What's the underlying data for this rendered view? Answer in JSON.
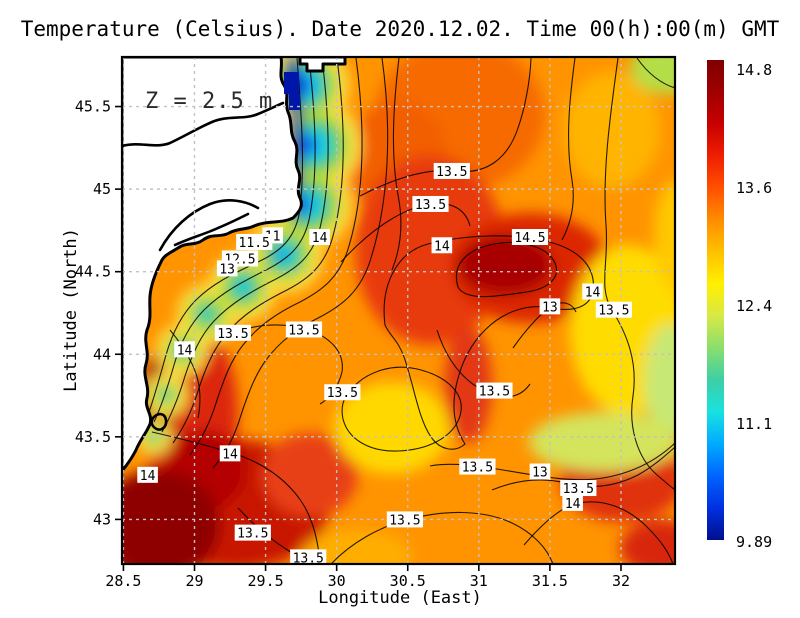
{
  "title": "Temperature (Celsius). Date 2020.12.02. Time 00(h):00(m) GMT",
  "annotation": "Z = 2.5 m",
  "axes": {
    "xlabel": "Longitude (East)",
    "ylabel": "Latitude (North)"
  },
  "chart_data": {
    "type": "heatmap",
    "subtype": "filled-contour-map-with-labeled-contours",
    "title": "Temperature (Celsius). Date 2020.12.02. Time 00(h):00(m) GMT",
    "xlabel": "Longitude (East)",
    "ylabel": "Latitude (North)",
    "depth_annotation": "Z = 2.5 m",
    "xlim": [
      28.49,
      32.38
    ],
    "ylim": [
      42.73,
      45.8
    ],
    "grid": true,
    "xticks": [
      {
        "value": 28.5,
        "label": "28.5"
      },
      {
        "value": 29,
        "label": "29"
      },
      {
        "value": 29.5,
        "label": "29.5"
      },
      {
        "value": 30,
        "label": "30"
      },
      {
        "value": 30.5,
        "label": "30.5"
      },
      {
        "value": 31,
        "label": "31"
      },
      {
        "value": 31.5,
        "label": "31.5"
      },
      {
        "value": 32,
        "label": "32"
      }
    ],
    "yticks": [
      {
        "value": 43,
        "label": "43"
      },
      {
        "value": 43.5,
        "label": "43.5"
      },
      {
        "value": 44,
        "label": "44"
      },
      {
        "value": 44.5,
        "label": "44.5"
      },
      {
        "value": 45,
        "label": "45"
      },
      {
        "value": 45.5,
        "label": "45.5"
      }
    ],
    "colorbar": {
      "min": 9.89,
      "max": 14.8,
      "colormap": "jet",
      "tick_labels": [
        "14.8",
        "13.6",
        "12.4",
        "11.1",
        "9.89"
      ],
      "colors_top_to_bottom": [
        "#7f0000",
        "#a00000",
        "#c80000",
        "#f01e00",
        "#ff5000",
        "#ff8c00",
        "#ffc100",
        "#fff000",
        "#d7e946",
        "#8ade6e",
        "#3ccfa5",
        "#18e2e0",
        "#00aaff",
        "#0064ff",
        "#0030e0",
        "#000e8f"
      ]
    },
    "contour_levels_labeled": [
      11,
      11.5,
      12.5,
      13,
      13.5,
      14,
      14.5
    ],
    "contour_labels": [
      {
        "v": "13.5",
        "lon": 30.81,
        "lat": 45.11
      },
      {
        "v": "13.5",
        "lon": 30.66,
        "lat": 44.91
      },
      {
        "v": "11",
        "lon": 29.55,
        "lat": 44.72
      },
      {
        "v": "11.5",
        "lon": 29.42,
        "lat": 44.68
      },
      {
        "v": "12.5",
        "lon": 29.32,
        "lat": 44.58
      },
      {
        "v": "13",
        "lon": 29.23,
        "lat": 44.52
      },
      {
        "v": "14",
        "lon": 29.88,
        "lat": 44.71
      },
      {
        "v": "14",
        "lon": 30.74,
        "lat": 44.66
      },
      {
        "v": "14.5",
        "lon": 31.36,
        "lat": 44.71
      },
      {
        "v": "14",
        "lon": 31.8,
        "lat": 44.38
      },
      {
        "v": "13",
        "lon": 31.5,
        "lat": 44.29
      },
      {
        "v": "13.5",
        "lon": 31.95,
        "lat": 44.27
      },
      {
        "v": "13.5",
        "lon": 29.27,
        "lat": 44.13
      },
      {
        "v": "13.5",
        "lon": 29.77,
        "lat": 44.15
      },
      {
        "v": "14",
        "lon": 28.93,
        "lat": 44.03
      },
      {
        "v": "13.5",
        "lon": 30.04,
        "lat": 43.77
      },
      {
        "v": "13.5",
        "lon": 31.11,
        "lat": 43.78
      },
      {
        "v": "14",
        "lon": 29.25,
        "lat": 43.4
      },
      {
        "v": "14",
        "lon": 28.67,
        "lat": 43.27
      },
      {
        "v": "13.5",
        "lon": 29.41,
        "lat": 42.92
      },
      {
        "v": "13.5",
        "lon": 30.48,
        "lat": 43.0
      },
      {
        "v": "13.5",
        "lon": 29.8,
        "lat": 42.77
      },
      {
        "v": "13.5",
        "lon": 30.99,
        "lat": 43.32
      },
      {
        "v": "13",
        "lon": 31.43,
        "lat": 43.29
      },
      {
        "v": "13.5",
        "lon": 31.7,
        "lat": 43.19
      },
      {
        "v": "14",
        "lon": 31.66,
        "lat": 43.1
      }
    ]
  }
}
